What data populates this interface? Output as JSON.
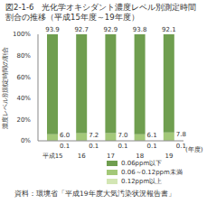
{
  "chart_data": {
    "type": "bar",
    "title": "図2-1-6　光化学オキシダント濃度レベル別測定時間割合の推移（平成15年度～19年度）",
    "y_label": "濃度レベル別測定時間の割合",
    "x_label": "(年度)",
    "categories": [
      "平成15",
      "16",
      "17",
      "18",
      "19"
    ],
    "series": [
      {
        "name": "0.06ppm以下",
        "color": "#6f9e4f",
        "values": [
          93.9,
          92.7,
          92.9,
          93.8,
          92.1
        ],
        "value_labels": [
          "93.9",
          "92.7",
          "92.9",
          "93.8",
          "92.1"
        ]
      },
      {
        "name": "0.06～0.12ppm未満",
        "color": "#a3c878",
        "values": [
          6.0,
          7.2,
          7.0,
          6.1,
          7.8
        ],
        "value_labels": [
          "6.0",
          "7.2",
          "7.0",
          "6.1",
          "7.8"
        ]
      },
      {
        "name": "0.12ppm以上",
        "color": "#d3e6b4",
        "values": [
          0.1,
          0.1,
          0.1,
          0.1,
          0.1
        ],
        "value_labels": [
          "0.1",
          "0.1",
          "0.1",
          "0.1",
          "0.1"
        ]
      }
    ],
    "ylim": [
      0,
      100
    ],
    "yticks": [
      {
        "value": 0,
        "label": "0%"
      },
      {
        "value": 20,
        "label": "20%"
      },
      {
        "value": 40,
        "label": "40%"
      },
      {
        "value": 60,
        "label": "60%"
      },
      {
        "value": 80,
        "label": "80%"
      },
      {
        "value": 100,
        "label": "100%"
      }
    ],
    "stacked": true,
    "data_labels": true,
    "grid": false,
    "legend": "lower right",
    "annotations": [
      "資料：環境省「平成19年度大気汚染状況報告書」"
    ]
  }
}
